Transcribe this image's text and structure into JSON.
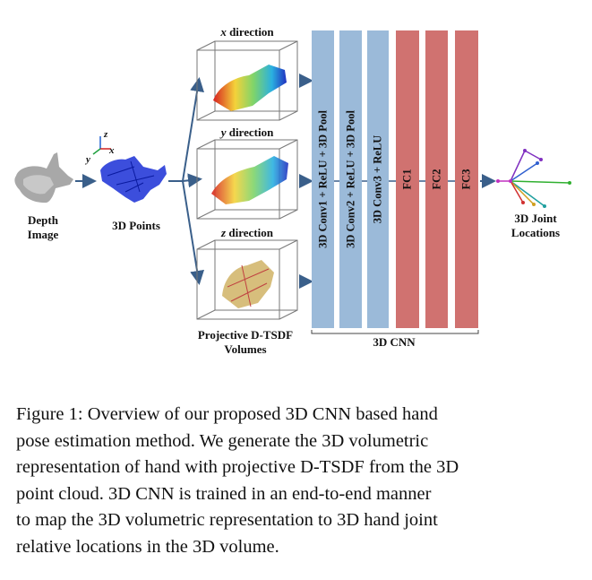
{
  "diagram": {
    "depth_image_label_1": "Depth",
    "depth_image_label_2": "Image",
    "points_label": "3D Points",
    "axes": {
      "x": "x",
      "y": "y",
      "z": "z"
    },
    "volumes": [
      {
        "axis": "x",
        "suffix": " direction"
      },
      {
        "axis": "y",
        "suffix": " direction"
      },
      {
        "axis": "z",
        "suffix": " direction"
      }
    ],
    "volumes_label_1": "Projective D-TSDF",
    "volumes_label_2": "Volumes",
    "layers": [
      "3D Conv1 + ReLU + 3D Pool",
      "3D Conv2 + ReLU + 3D Pool",
      "3D Conv3 + ReLU",
      "FC1",
      "FC2",
      "FC3"
    ],
    "cnn_label": "3D CNN",
    "output_label_1": "3D Joint",
    "output_label_2": "Locations",
    "colors": {
      "conv": "#9bbad9",
      "fc": "#d07270",
      "arrow": "#3a5f8a",
      "points": "#1a2fd6"
    }
  },
  "caption_lines": [
    "Figure 1:  Overview of our proposed 3D CNN based hand",
    "pose estimation method.  We generate the 3D volumetric",
    "representation of hand with projective D-TSDF from the 3D",
    "point cloud.  3D CNN is trained in an end-to-end manner",
    "to map the 3D volumetric representation to 3D hand joint",
    "relative locations in the 3D volume."
  ]
}
